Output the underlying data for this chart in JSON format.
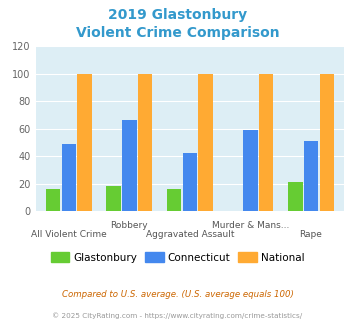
{
  "title_line1": "2019 Glastonbury",
  "title_line2": "Violent Crime Comparison",
  "title_color": "#3399cc",
  "glastonbury": [
    16,
    18,
    16,
    0,
    21
  ],
  "connecticut": [
    49,
    66,
    42,
    59,
    51
  ],
  "national": [
    100,
    100,
    100,
    100,
    100
  ],
  "glastonbury_color": "#66cc33",
  "connecticut_color": "#4488ee",
  "national_color": "#ffaa33",
  "bg_color": "#ddeef5",
  "ylim": [
    0,
    120
  ],
  "yticks": [
    0,
    20,
    40,
    60,
    80,
    100,
    120
  ],
  "top_row_labels": [
    "",
    "Robbery",
    "",
    "Murder & Mans...",
    ""
  ],
  "bot_row_labels": [
    "All Violent Crime",
    "",
    "Aggravated Assault",
    "",
    "Rape"
  ],
  "footnote1": "Compared to U.S. average. (U.S. average equals 100)",
  "footnote2": "© 2025 CityRating.com - https://www.cityrating.com/crime-statistics/",
  "footnote1_color": "#cc6600",
  "footnote2_color": "#999999",
  "legend_labels": [
    "Glastonbury",
    "Connecticut",
    "National"
  ]
}
